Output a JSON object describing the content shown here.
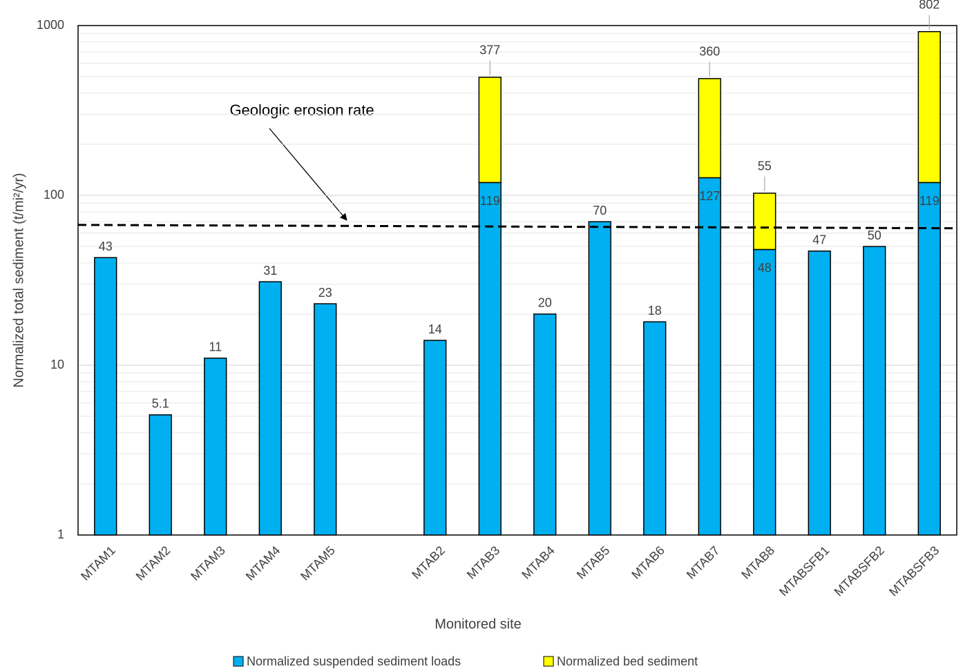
{
  "chart_data": {
    "type": "stacked_bar",
    "y_label": "Normalized total sediment (t/mi²/yr)",
    "x_label": "Monitored site",
    "categories": [
      "MTAM1",
      "MTAM2",
      "MTAM3",
      "MTAM4",
      "MTAM5",
      null,
      "MTAB2",
      "MTAB3",
      "MTAB4",
      "MTAB5",
      "MTAB6",
      "MTAB7",
      "MTAB8",
      "MTABSFB1",
      "MTABSFB2",
      "MTABSFB3"
    ],
    "series": [
      {
        "name": "Normalized suspended sediment loads",
        "color": "#00b0f0",
        "values": [
          43,
          5.1,
          11,
          31,
          23,
          null,
          14,
          119,
          20,
          70,
          18,
          127,
          48,
          47,
          50,
          119
        ]
      },
      {
        "name": "Normalized bed sediment",
        "color": "#ffff00",
        "values": [
          null,
          null,
          null,
          null,
          null,
          null,
          null,
          377,
          null,
          null,
          null,
          360,
          55,
          null,
          null,
          802
        ]
      }
    ],
    "ylim": [
      1,
      1000
    ],
    "yticks": [
      1,
      10,
      100,
      1000
    ],
    "log_y": true,
    "yminor": [
      2,
      3,
      4,
      5,
      6,
      7,
      8,
      9,
      20,
      30,
      40,
      50,
      60,
      70,
      80,
      90,
      200,
      300,
      400,
      500,
      600,
      700,
      800,
      900
    ],
    "grid": true,
    "reference_line": {
      "label": "Geologic erosion rate",
      "start": 67,
      "end": 64
    },
    "legend": "bottom"
  }
}
